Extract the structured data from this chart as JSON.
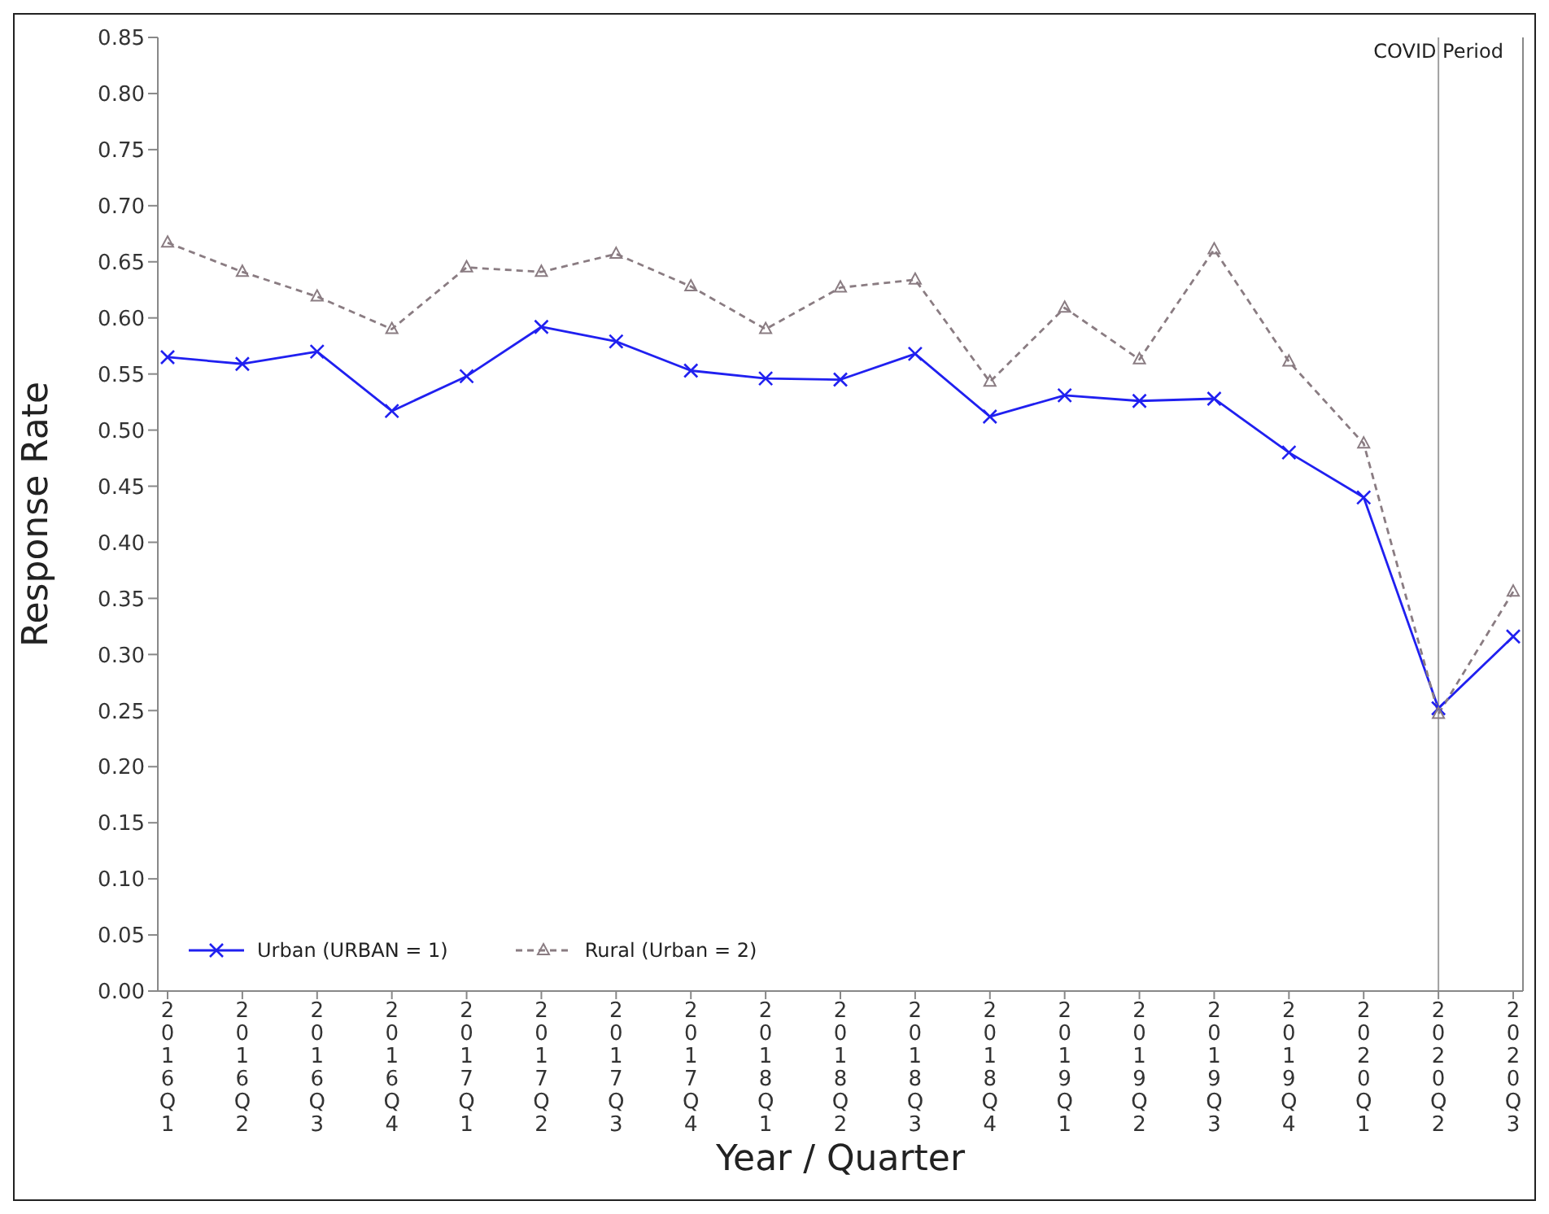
{
  "chart_data": {
    "type": "line",
    "xlabel": "Year / Quarter",
    "ylabel": "Response Rate",
    "categories": [
      "2016Q1",
      "2016Q2",
      "2016Q3",
      "2016Q4",
      "2017Q1",
      "2017Q2",
      "2017Q3",
      "2017Q4",
      "2018Q1",
      "2018Q2",
      "2018Q3",
      "2018Q4",
      "2019Q1",
      "2019Q2",
      "2019Q3",
      "2019Q4",
      "2020Q1",
      "2020Q2",
      "2020Q3"
    ],
    "series": [
      {
        "name": "Urban (URBAN = 1)",
        "color": "#2020f0",
        "marker": "cross",
        "line_style": "solid",
        "values": [
          0.565,
          0.559,
          0.57,
          0.517,
          0.548,
          0.592,
          0.579,
          0.553,
          0.546,
          0.545,
          0.568,
          0.512,
          0.531,
          0.526,
          0.528,
          0.48,
          0.44,
          0.252,
          0.316
        ]
      },
      {
        "name": "Rural (Urban = 2)",
        "color": "#8a7c82",
        "marker": "triangle",
        "line_style": "dashed",
        "values": [
          0.667,
          0.641,
          0.619,
          0.59,
          0.645,
          0.641,
          0.657,
          0.628,
          0.59,
          0.627,
          0.634,
          0.543,
          0.609,
          0.563,
          0.661,
          0.561,
          0.488,
          0.247,
          0.356
        ]
      }
    ],
    "ylim": [
      0,
      0.85
    ],
    "yticks": [
      {
        "value": 0,
        "label": "0.00"
      },
      {
        "value": 0.05,
        "label": "0.05"
      },
      {
        "value": 0.1,
        "label": "0.10"
      },
      {
        "value": 0.15,
        "label": "0.15"
      },
      {
        "value": 0.2,
        "label": "0.20"
      },
      {
        "value": 0.25,
        "label": "0.25"
      },
      {
        "value": 0.3,
        "label": "0.30"
      },
      {
        "value": 0.35,
        "label": "0.35"
      },
      {
        "value": 0.4,
        "label": "0.40"
      },
      {
        "value": 0.45,
        "label": "0.45"
      },
      {
        "value": 0.5,
        "label": "0.50"
      },
      {
        "value": 0.55,
        "label": "0.55"
      },
      {
        "value": 0.6,
        "label": "0.60"
      },
      {
        "value": 0.65,
        "label": "0.65"
      },
      {
        "value": 0.7,
        "label": "0.70"
      },
      {
        "value": 0.75,
        "label": "0.75"
      },
      {
        "value": 0.8,
        "label": "0.80"
      },
      {
        "value": 0.85,
        "label": "0.85"
      }
    ],
    "ref_lines": [
      {
        "axis": "x",
        "value": "2020Q2",
        "label": "COVID Period",
        "color": "#a0a0a0"
      }
    ],
    "legend": "bottom left",
    "grid": false
  }
}
